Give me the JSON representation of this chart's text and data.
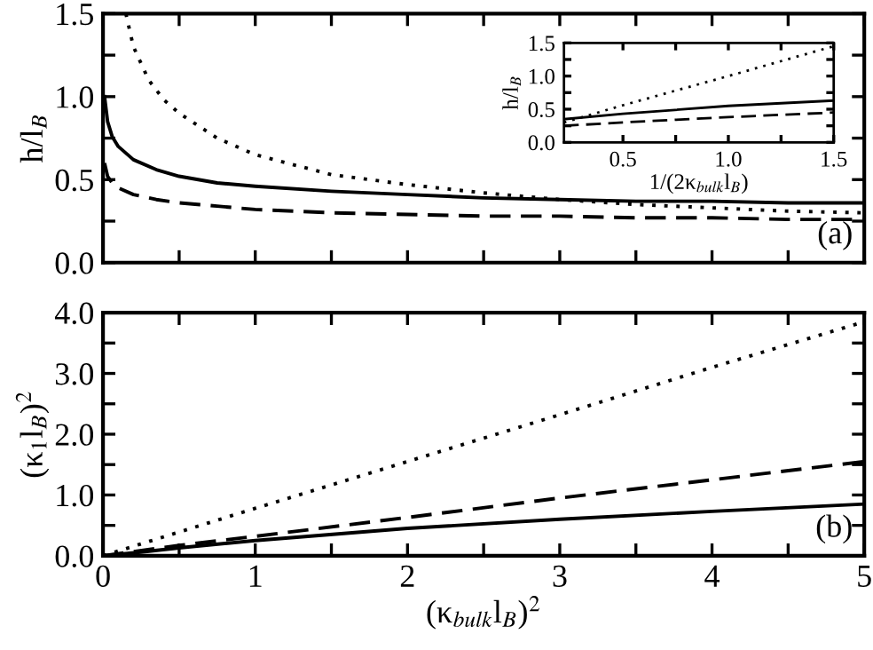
{
  "chart_data": [
    {
      "type": "line",
      "ylabel": "h/l$_{B}$",
      "xlim": [
        0,
        5
      ],
      "ylim": [
        0,
        1.5
      ],
      "tick_labels": "y",
      "xticks": [
        {
          "value": 0,
          "label": null
        },
        {
          "value": 0.5,
          "label": null
        },
        {
          "value": 1,
          "label": null
        },
        {
          "value": 1.5,
          "label": null
        },
        {
          "value": 2,
          "label": null
        },
        {
          "value": 2.5,
          "label": null
        },
        {
          "value": 3,
          "label": null
        },
        {
          "value": 3.5,
          "label": null
        },
        {
          "value": 4,
          "label": null
        },
        {
          "value": 4.5,
          "label": null
        },
        {
          "value": 5,
          "label": null
        }
      ],
      "yticks": [
        {
          "value": 0,
          "label": "0.0"
        },
        {
          "value": 0.25,
          "label": null
        },
        {
          "value": 0.5,
          "label": "0.5"
        },
        {
          "value": 0.75,
          "label": null
        },
        {
          "value": 1,
          "label": "1.0"
        },
        {
          "value": 1.25,
          "label": null
        },
        {
          "value": 1.5,
          "label": "1.5"
        }
      ],
      "series": [
        {
          "color": "#000000",
          "line_style": "solid",
          "x": [
            0.01,
            0.03,
            0.06,
            0.1,
            0.2,
            0.35,
            0.5,
            0.75,
            1,
            1.5,
            2,
            2.5,
            3,
            3.5,
            4,
            4.5,
            5
          ],
          "values": [
            1.0,
            0.85,
            0.76,
            0.7,
            0.62,
            0.56,
            0.52,
            0.48,
            0.46,
            0.43,
            0.41,
            0.39,
            0.38,
            0.37,
            0.37,
            0.36,
            0.36
          ]
        },
        {
          "color": "#000000",
          "line_style": "dashed",
          "x": [
            0.01,
            0.03,
            0.06,
            0.1,
            0.2,
            0.35,
            0.5,
            0.75,
            1,
            1.5,
            2,
            2.5,
            3,
            3.5,
            4,
            4.5,
            5
          ],
          "values": [
            0.6,
            0.52,
            0.48,
            0.45,
            0.41,
            0.38,
            0.36,
            0.34,
            0.32,
            0.3,
            0.29,
            0.28,
            0.28,
            0.27,
            0.27,
            0.26,
            0.26
          ]
        },
        {
          "color": "#000000",
          "line_style": "dotted",
          "x": [
            0.15,
            0.2,
            0.3,
            0.4,
            0.5,
            0.75,
            1,
            1.5,
            2,
            2.5,
            3,
            3.5,
            4,
            4.5,
            5
          ],
          "values": [
            1.5,
            1.3,
            1.1,
            0.98,
            0.9,
            0.75,
            0.65,
            0.53,
            0.47,
            0.42,
            0.38,
            0.35,
            0.33,
            0.31,
            0.3
          ]
        }
      ],
      "annotations": [
        "(a)"
      ]
    },
    {
      "type": "line",
      "xlabel": "1/(2κ$_{bulk}$l$_{B}$)",
      "ylabel": "h/l$_{B}$",
      "xlim": [
        0.22,
        1.5
      ],
      "ylim": [
        0,
        1.5
      ],
      "xticks": [
        {
          "value": 0.5,
          "label": "0.5"
        },
        {
          "value": 0.75,
          "label": null
        },
        {
          "value": 1,
          "label": "1.0"
        },
        {
          "value": 1.25,
          "label": null
        },
        {
          "value": 1.5,
          "label": "1.5"
        }
      ],
      "yticks": [
        {
          "value": 0,
          "label": "0.0"
        },
        {
          "value": 0.25,
          "label": null
        },
        {
          "value": 0.5,
          "label": "0.5"
        },
        {
          "value": 0.75,
          "label": null
        },
        {
          "value": 1,
          "label": "1.0"
        },
        {
          "value": 1.25,
          "label": null
        },
        {
          "value": 1.5,
          "label": "1.5"
        }
      ],
      "series": [
        {
          "color": "#000000",
          "line_style": "solid",
          "x": [
            0.22,
            0.5,
            1,
            1.5
          ],
          "values": [
            0.35,
            0.43,
            0.55,
            0.63
          ]
        },
        {
          "color": "#000000",
          "line_style": "dashed",
          "x": [
            0.22,
            0.5,
            1,
            1.5
          ],
          "values": [
            0.25,
            0.3,
            0.38,
            0.45
          ]
        },
        {
          "color": "#000000",
          "line_style": "dotted",
          "x": [
            0.22,
            0.5,
            1,
            1.5
          ],
          "values": [
            0.3,
            0.56,
            1.0,
            1.45
          ]
        }
      ]
    },
    {
      "type": "line",
      "xlabel": "(κ$_{bulk}$l$_{B}$)$^{2}$",
      "ylabel": "(κ$_{1}$l$_{B}$)$^{2}$",
      "xlim": [
        0,
        5
      ],
      "ylim": [
        0,
        4
      ],
      "xticks": [
        0,
        {
          "value": 0.5,
          "label": null
        },
        1,
        {
          "value": 1.5,
          "label": null
        },
        2,
        {
          "value": 2.5,
          "label": null
        },
        3,
        {
          "value": 3.5,
          "label": null
        },
        4,
        {
          "value": 4.5,
          "label": null
        },
        5
      ],
      "yticks": [
        {
          "value": 0,
          "label": "0.0"
        },
        {
          "value": 0.5,
          "label": null
        },
        {
          "value": 1,
          "label": "1.0"
        },
        {
          "value": 1.5,
          "label": null
        },
        {
          "value": 2,
          "label": "2.0"
        },
        {
          "value": 2.5,
          "label": null
        },
        {
          "value": 3,
          "label": "3.0"
        },
        {
          "value": 3.5,
          "label": null
        },
        {
          "value": 4,
          "label": "4.0"
        }
      ],
      "series": [
        {
          "color": "#000000",
          "line_style": "solid",
          "x": [
            0,
            0.25,
            0.5,
            1,
            2,
            3,
            4,
            5
          ],
          "values": [
            0,
            0.06,
            0.13,
            0.25,
            0.45,
            0.6,
            0.73,
            0.85
          ]
        },
        {
          "color": "#000000",
          "line_style": "dashed",
          "x": [
            0,
            0.5,
            1,
            2,
            3,
            4,
            5
          ],
          "values": [
            0,
            0.17,
            0.32,
            0.63,
            0.95,
            1.25,
            1.55
          ]
        },
        {
          "color": "#000000",
          "line_style": "dotted",
          "x": [
            0,
            1,
            2,
            3,
            4,
            5
          ],
          "values": [
            0,
            0.78,
            1.55,
            2.32,
            3.1,
            3.85
          ]
        }
      ],
      "annotations": [
        "(b)"
      ]
    }
  ]
}
